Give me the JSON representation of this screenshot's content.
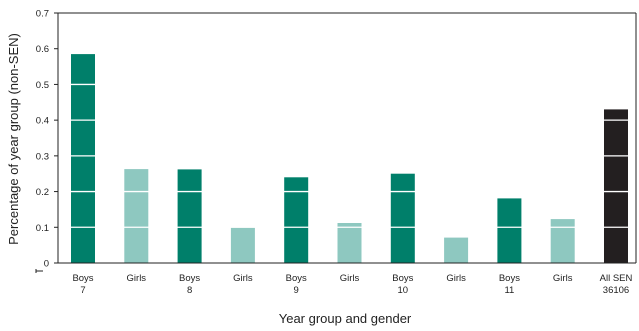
{
  "chart_data": {
    "type": "bar",
    "categories": [
      [
        "Boys",
        "7"
      ],
      [
        "Girls"
      ],
      [
        "Boys",
        "8"
      ],
      [
        "Girls"
      ],
      [
        "Boys",
        "9"
      ],
      [
        "Girls"
      ],
      [
        "Boys",
        "10"
      ],
      [
        "Girls"
      ],
      [
        "Boys",
        "11"
      ],
      [
        "Girls"
      ],
      [
        "All SEN",
        "36106"
      ]
    ],
    "values": [
      0.585,
      0.263,
      0.262,
      0.099,
      0.24,
      0.112,
      0.25,
      0.071,
      0.181,
      0.123,
      0.43
    ],
    "bar_colors": [
      "#007f6a",
      "#8ec8c0",
      "#007f6a",
      "#8ec8c0",
      "#007f6a",
      "#8ec8c0",
      "#007f6a",
      "#8ec8c0",
      "#007f6a",
      "#8ec8c0",
      "#231f20"
    ],
    "xlabel": "Year group and gender",
    "ylabel": "Percentage of year group (non-SEN)",
    "ylim": [
      0,
      0.7
    ],
    "yticks": [
      "0",
      "0.1",
      "0.2",
      "0.3",
      "0.4",
      "0.5",
      "0.6",
      "0.7"
    ],
    "grid": "white lines across bars at each tick",
    "legend": "none"
  }
}
